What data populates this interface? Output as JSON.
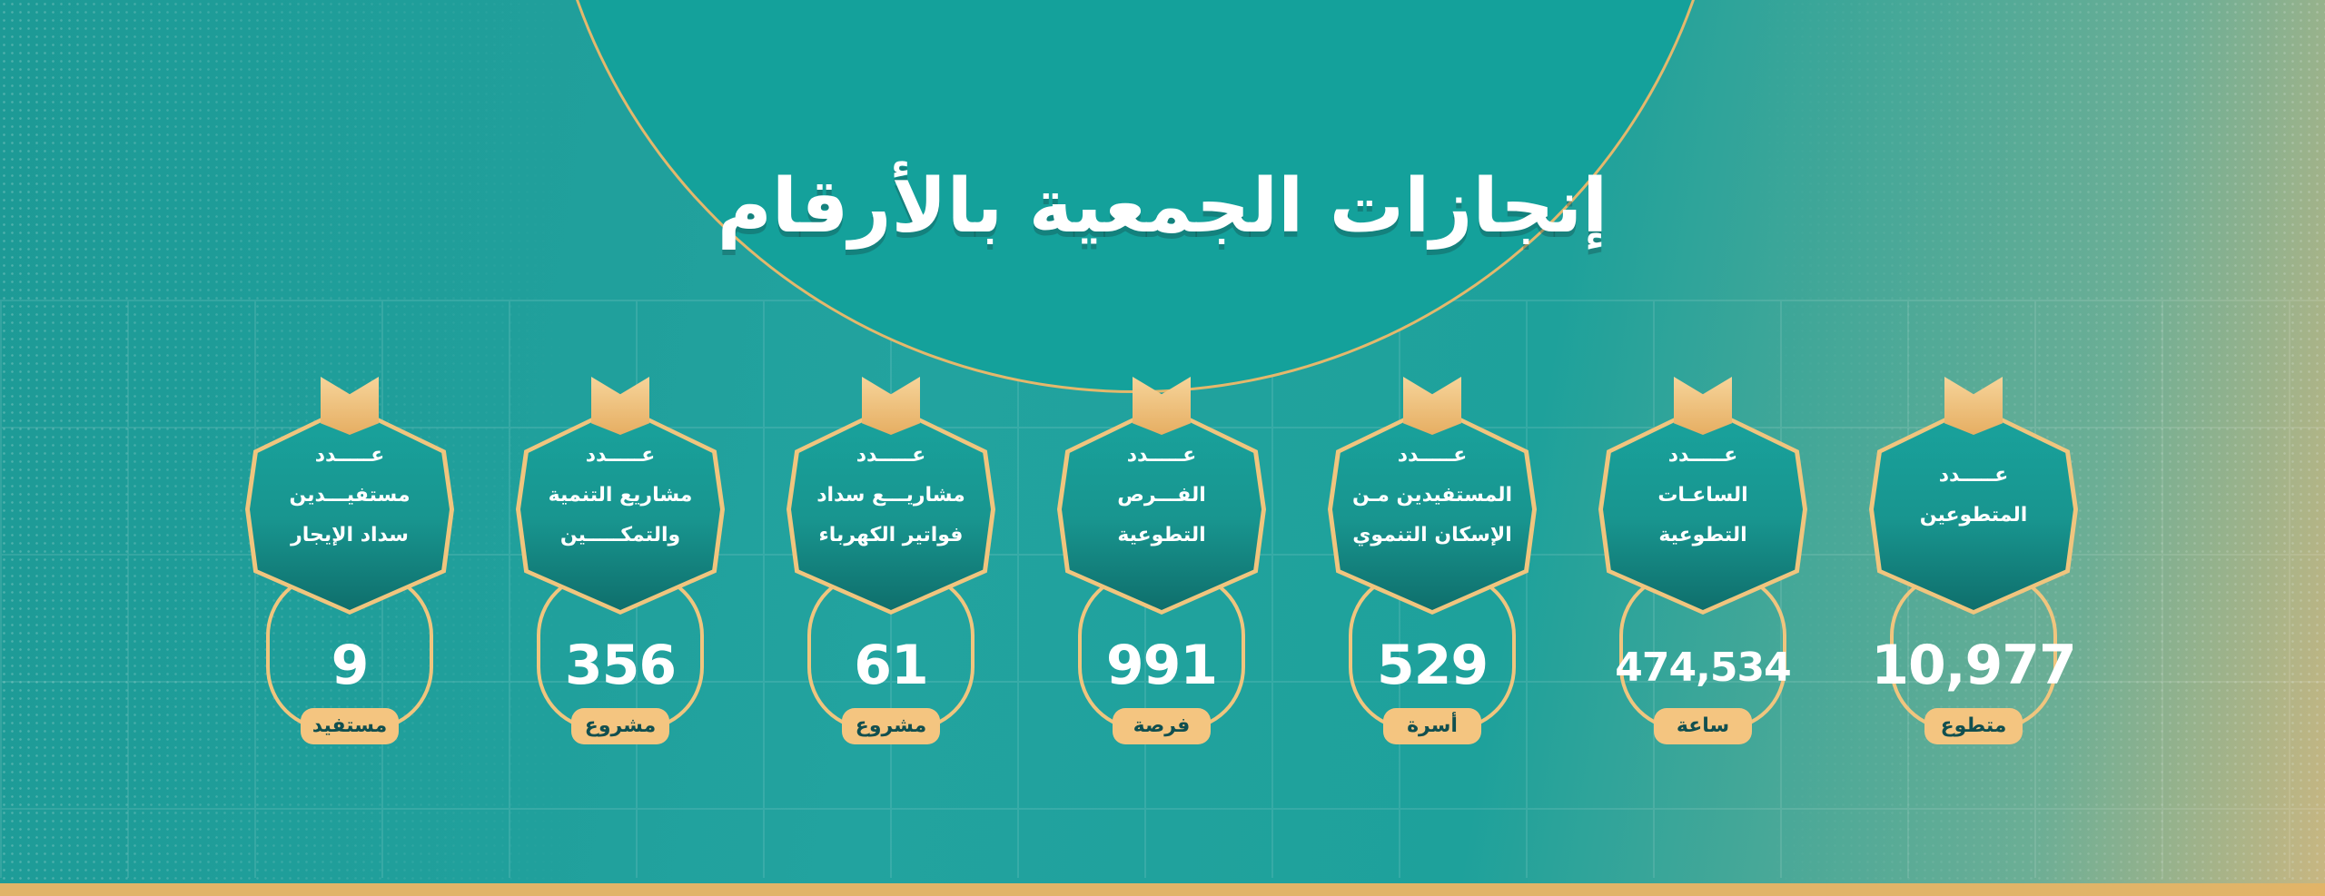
{
  "title": "إنجازات الجمعية بالأرقام",
  "colors": {
    "teal": "#1d9a96",
    "gold": "#f0c57e",
    "dark_teal": "#0f6f6c"
  },
  "cards": [
    {
      "lines": [
        "عـــــدد",
        "مستفيـــدين",
        "سداد الإيجار"
      ],
      "value": "9",
      "unit": "مستفيد"
    },
    {
      "lines": [
        "عـــــدد",
        "مشاريع التنمية",
        "والتمكـــــين"
      ],
      "value": "356",
      "unit": "مشروع"
    },
    {
      "lines": [
        "عـــــدد",
        "مشاريـــع سداد",
        "فواتير الكهرباء"
      ],
      "value": "61",
      "unit": "مشروع"
    },
    {
      "lines": [
        "عـــــدد",
        "الفـــرص",
        "التطوعية"
      ],
      "value": "991",
      "unit": "فرصة"
    },
    {
      "lines": [
        "عـــــدد",
        "المستفيدين مـن",
        "الإسكان التنموي"
      ],
      "value": "529",
      "unit": "أسرة"
    },
    {
      "lines": [
        "عـــــدد",
        "الساعـات",
        "التطوعية"
      ],
      "value": "474,534",
      "unit": "ساعة"
    },
    {
      "lines": [
        "عـــــدد",
        "المتطوعين",
        ""
      ],
      "value": "10,977",
      "unit": "متطوع"
    }
  ]
}
